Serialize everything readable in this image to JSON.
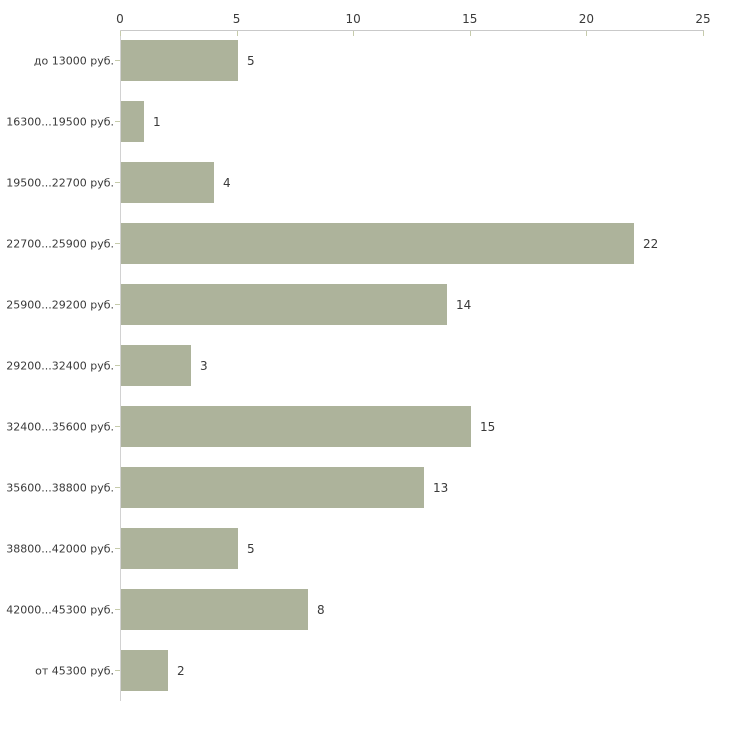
{
  "chart_data": {
    "type": "bar",
    "orientation": "horizontal",
    "title": "",
    "categories": [
      "до 13000 руб.",
      "16300...19500 руб.",
      "19500...22700 руб.",
      "22700...25900 руб.",
      "25900...29200 руб.",
      "29200...32400 руб.",
      "32400...35600 руб.",
      "35600...38800 руб.",
      "38800...42000 руб.",
      "42000...45300 руб.",
      "от 45300 руб."
    ],
    "values": [
      5,
      1,
      4,
      22,
      14,
      3,
      15,
      13,
      5,
      8,
      2
    ],
    "value_labels": [
      "5",
      "1",
      "4",
      "22",
      "14",
      "3",
      "15",
      "13",
      "5",
      "8",
      "2"
    ],
    "xlim": [
      0,
      25
    ],
    "x_ticks": [
      "0",
      "5",
      "10",
      "15",
      "20",
      "25"
    ],
    "xlabel": "",
    "ylabel": "",
    "grid": false,
    "legend": null,
    "colors": {
      "bar_fill": "#adb39b",
      "axis_line": "#c9c9c9",
      "tick_mark": "#c6cbab",
      "text": "#3a3a3a",
      "background": "#ffffff"
    }
  }
}
